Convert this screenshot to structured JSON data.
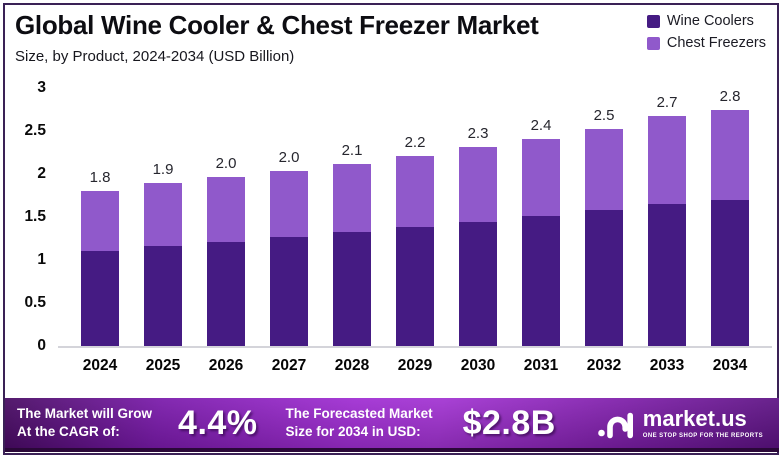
{
  "header": {
    "title": "Global Wine Cooler & Chest Freezer Market",
    "subtitle": "Size, by Product, 2024-2034 (USD Billion)"
  },
  "legend": [
    {
      "label": "Wine Coolers",
      "color": "#451b83"
    },
    {
      "label": "Chest Freezers",
      "color": "#9059cb"
    }
  ],
  "chart_data": {
    "type": "bar",
    "stacked": true,
    "title": "Global Wine Cooler & Chest Freezer Market Size, by Product, 2024-2034 (USD Billion)",
    "categories": [
      "2024",
      "2025",
      "2026",
      "2027",
      "2028",
      "2029",
      "2030",
      "2031",
      "2032",
      "2033",
      "2034"
    ],
    "series": [
      {
        "name": "Wine Coolers",
        "color": "#451b83",
        "values": [
          1.1,
          1.16,
          1.21,
          1.27,
          1.32,
          1.38,
          1.44,
          1.51,
          1.58,
          1.65,
          1.72
        ]
      },
      {
        "name": "Chest Freezers",
        "color": "#9059cb",
        "values": [
          0.7,
          0.74,
          0.75,
          0.77,
          0.8,
          0.83,
          0.87,
          0.9,
          0.94,
          1.02,
          1.06
        ]
      }
    ],
    "total_labels": [
      "1.8",
      "1.9",
      "2.0",
      "2.0",
      "2.1",
      "2.2",
      "2.3",
      "2.4",
      "2.5",
      "2.7",
      "2.8"
    ],
    "xlabel": "",
    "ylabel": "",
    "ylim": [
      0,
      3
    ],
    "yticks_display": [
      "3",
      "2.5",
      "2",
      "1.5",
      "1",
      "0.5",
      "0"
    ],
    "grid": false,
    "legend_position": "top-right"
  },
  "banner": {
    "cagr_text_line1": "The Market will Grow",
    "cagr_text_line2": "At the CAGR of:",
    "cagr_value": "4.4%",
    "forecast_text_line1": "The Forecasted Market",
    "forecast_text_line2": "Size for 2034 in USD:",
    "forecast_value": "$2.8B",
    "logo_text": "market.us",
    "logo_tagline": "ONE STOP SHOP FOR THE REPORTS"
  },
  "colors": {
    "frame_border": "#3a2156",
    "wine_coolers": "#451b83",
    "chest_freezers": "#9059cb",
    "banner_center": "#a233d2",
    "banner_edge": "#470a62",
    "baseline": "#d4d4da"
  }
}
